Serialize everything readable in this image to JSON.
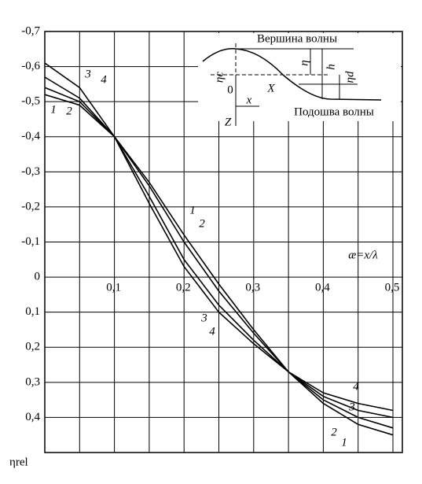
{
  "chart_data": {
    "type": "line",
    "y_label": "ηrel",
    "annotation": "æ=x/λ",
    "x": [
      0,
      0.05,
      0.1,
      0.15,
      0.2,
      0.25,
      0.3,
      0.35,
      0.4,
      0.45,
      0.5
    ],
    "series": [
      {
        "name": "1",
        "color": "#000000",
        "values": [
          -0.52,
          -0.49,
          -0.4,
          -0.27,
          -0.12,
          0.02,
          0.15,
          0.27,
          0.36,
          0.42,
          0.45
        ]
      },
      {
        "name": "2",
        "color": "#000000",
        "values": [
          -0.54,
          -0.5,
          -0.4,
          -0.26,
          -0.1,
          0.04,
          0.16,
          0.27,
          0.35,
          0.4,
          0.43
        ]
      },
      {
        "name": "3",
        "color": "#000000",
        "values": [
          -0.57,
          -0.51,
          -0.4,
          -0.23,
          -0.05,
          0.08,
          0.18,
          0.27,
          0.34,
          0.38,
          0.4
        ]
      },
      {
        "name": "4",
        "color": "#000000",
        "values": [
          -0.61,
          -0.54,
          -0.4,
          -0.21,
          -0.03,
          0.1,
          0.19,
          0.27,
          0.33,
          0.36,
          0.38
        ]
      }
    ],
    "xlim": [
      0,
      0.5
    ],
    "xticks": [
      {
        "value": 0.1,
        "label": "0,1"
      },
      {
        "value": 0.2,
        "label": "0,2"
      },
      {
        "value": 0.3,
        "label": "0,3"
      },
      {
        "value": 0.4,
        "label": "0,4"
      },
      {
        "value": 0.5,
        "label": "0,5"
      }
    ],
    "x_grid_step": 0.05,
    "ylim": [
      -0.7,
      0.5
    ],
    "y_inverted": true,
    "yticks": [
      {
        "value": -0.7,
        "label": "-0,7"
      },
      {
        "value": -0.6,
        "label": "-0,6"
      },
      {
        "value": -0.5,
        "label": "-0,5"
      },
      {
        "value": -0.4,
        "label": "-0,4"
      },
      {
        "value": -0.3,
        "label": "-0,3"
      },
      {
        "value": -0.2,
        "label": "-0,2"
      },
      {
        "value": -0.1,
        "label": "-0,1"
      },
      0,
      {
        "value": 0.1,
        "label": "0,1"
      },
      {
        "value": 0.2,
        "label": "0,2"
      },
      {
        "value": 0.3,
        "label": "0,3"
      },
      {
        "value": 0.4,
        "label": "0,4"
      }
    ],
    "grid": true,
    "inset": {
      "crest": "Вершина волны",
      "trough": "Подошва волны",
      "eta_c": "ηc",
      "eta": "η",
      "h": "h",
      "eta_d": "ηd",
      "origin": "0",
      "X": "X",
      "x": "x",
      "Z": "Z"
    }
  }
}
